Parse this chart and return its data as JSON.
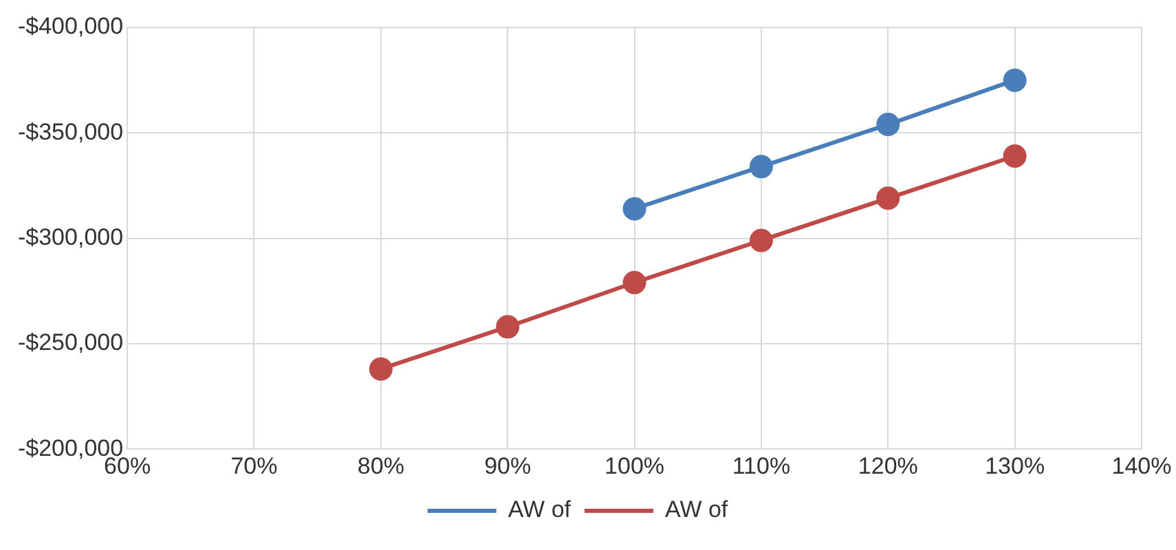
{
  "chart_data": {
    "type": "line",
    "xlim": [
      60,
      140
    ],
    "xticks": [
      {
        "value": 60,
        "label": "60%"
      },
      {
        "value": 70,
        "label": "70%"
      },
      {
        "value": 80,
        "label": "80%"
      },
      {
        "value": 90,
        "label": "90%"
      },
      {
        "value": 100,
        "label": "100%"
      },
      {
        "value": 110,
        "label": "110%"
      },
      {
        "value": 120,
        "label": "120%"
      },
      {
        "value": 130,
        "label": "130%"
      },
      {
        "value": 140,
        "label": "140%"
      }
    ],
    "ylim": [
      -200000,
      -400000
    ],
    "yticks": [
      {
        "value": -200000,
        "label": "-$200,000"
      },
      {
        "value": -250000,
        "label": "-$250,000"
      },
      {
        "value": -300000,
        "label": "-$300,000"
      },
      {
        "value": -350000,
        "label": "-$350,000"
      },
      {
        "value": -400000,
        "label": "-$400,000"
      }
    ],
    "series": [
      {
        "name": "AW of",
        "color": "#4a7ebb",
        "x": [
          100,
          110,
          120,
          130
        ],
        "values": [
          -314000,
          -334000,
          -354000,
          -375000
        ]
      },
      {
        "name": "AW of",
        "color": "#be4b48",
        "x": [
          80,
          90,
          100,
          110,
          120,
          130
        ],
        "values": [
          -238000,
          -258000,
          -279000,
          -299000,
          -319000,
          -339000
        ]
      }
    ],
    "grid": true,
    "legend": "bottom",
    "marker": "circle",
    "line_style": "solid"
  }
}
